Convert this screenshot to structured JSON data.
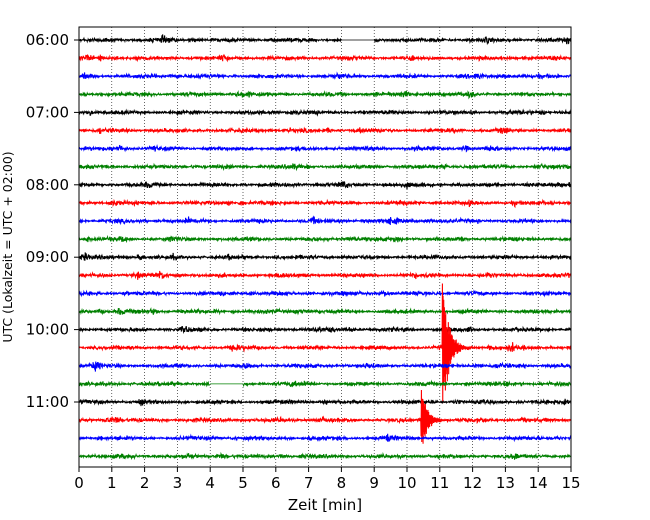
{
  "chart_data": {
    "type": "line",
    "title": "",
    "xlabel": "Zeit  [min]",
    "ylabel": "UTC (Lokalzeit = UTC + 02:00)",
    "xlim": [
      0,
      15
    ],
    "x_ticks": [
      "0",
      "1",
      "2",
      "3",
      "4",
      "5",
      "6",
      "7",
      "8",
      "9",
      "10",
      "11",
      "12",
      "13",
      "14",
      "15"
    ],
    "y_tick_labels": [
      "06:00",
      "07:00",
      "08:00",
      "09:00",
      "10:00",
      "11:00"
    ],
    "grid": "vertical dotted",
    "trace_interval_minutes": 15,
    "traces": [
      {
        "start": "06:00",
        "color": "#000000",
        "gaps": [
          [
            8.0,
            9.0
          ]
        ]
      },
      {
        "start": "06:15",
        "color": "#ff0000"
      },
      {
        "start": "06:30",
        "color": "#0000ff"
      },
      {
        "start": "06:45",
        "color": "#008000"
      },
      {
        "start": "07:00",
        "color": "#000000"
      },
      {
        "start": "07:15",
        "color": "#ff0000"
      },
      {
        "start": "07:30",
        "color": "#0000ff"
      },
      {
        "start": "07:45",
        "color": "#008000"
      },
      {
        "start": "08:00",
        "color": "#000000"
      },
      {
        "start": "08:15",
        "color": "#ff0000"
      },
      {
        "start": "08:30",
        "color": "#0000ff"
      },
      {
        "start": "08:45",
        "color": "#008000"
      },
      {
        "start": "09:00",
        "color": "#000000"
      },
      {
        "start": "09:15",
        "color": "#ff0000"
      },
      {
        "start": "09:30",
        "color": "#0000ff"
      },
      {
        "start": "09:45",
        "color": "#008000"
      },
      {
        "start": "10:00",
        "color": "#000000"
      },
      {
        "start": "10:15",
        "color": "#ff0000",
        "events": [
          {
            "minute": 11.1,
            "peak_amplitude": 1.9
          }
        ]
      },
      {
        "start": "10:30",
        "color": "#0000ff"
      },
      {
        "start": "10:45",
        "color": "#008000",
        "gaps": [
          [
            4.0,
            5.0
          ]
        ]
      },
      {
        "start": "11:00",
        "color": "#000000"
      },
      {
        "start": "11:15",
        "color": "#ff0000",
        "events": [
          {
            "minute": 10.45,
            "peak_amplitude": 0.9
          }
        ]
      },
      {
        "start": "11:30",
        "color": "#0000ff"
      },
      {
        "start": "11:45",
        "color": "#008000"
      }
    ]
  }
}
